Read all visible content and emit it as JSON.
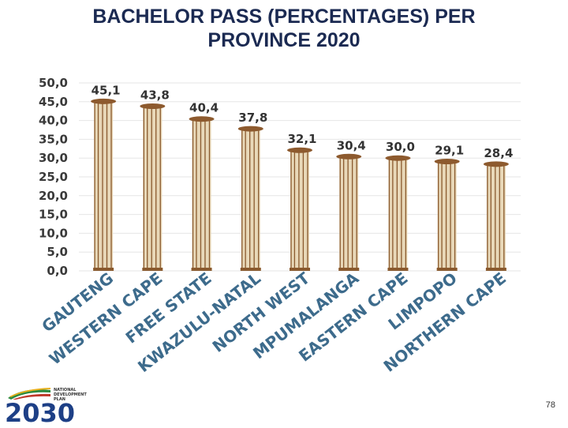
{
  "chart_data": {
    "type": "bar",
    "title": "BACHELOR PASS (PERCENTAGES) PER PROVINCE 2020",
    "categories": [
      "GAUTENG",
      "WESTERN CAPE",
      "FREE STATE",
      "KWAZULU-NATAL",
      "NORTH WEST",
      "MPUMALANGA",
      "EASTERN CAPE",
      "LIMPOPO",
      "NORTHERN CAPE"
    ],
    "values": [
      45.1,
      43.8,
      40.4,
      37.8,
      32.1,
      30.4,
      30.0,
      29.1,
      28.4
    ],
    "value_labels": [
      "45,1",
      "43,8",
      "40,4",
      "37,8",
      "32,1",
      "30,4",
      "30,0",
      "29,1",
      "28,4"
    ],
    "y_ticks": [
      "0,0",
      "5,0",
      "10,0",
      "15,0",
      "20,0",
      "25,0",
      "30,0",
      "35,0",
      "40,0",
      "45,0",
      "50,0"
    ],
    "ylim": [
      0,
      50
    ],
    "xlabel": "",
    "ylabel": "",
    "grid": true,
    "legend": "none",
    "colors": {
      "column": "#e8d8b8",
      "column_edge": "#8a5a2e",
      "capital": "#8d5a2e",
      "category_text": "#3d6b8c"
    }
  },
  "footer": {
    "logo_word": "2030",
    "logo_text_lines": [
      "NATIONAL",
      "DEVELOPMENT",
      "PLAN"
    ],
    "page_number": "78"
  }
}
